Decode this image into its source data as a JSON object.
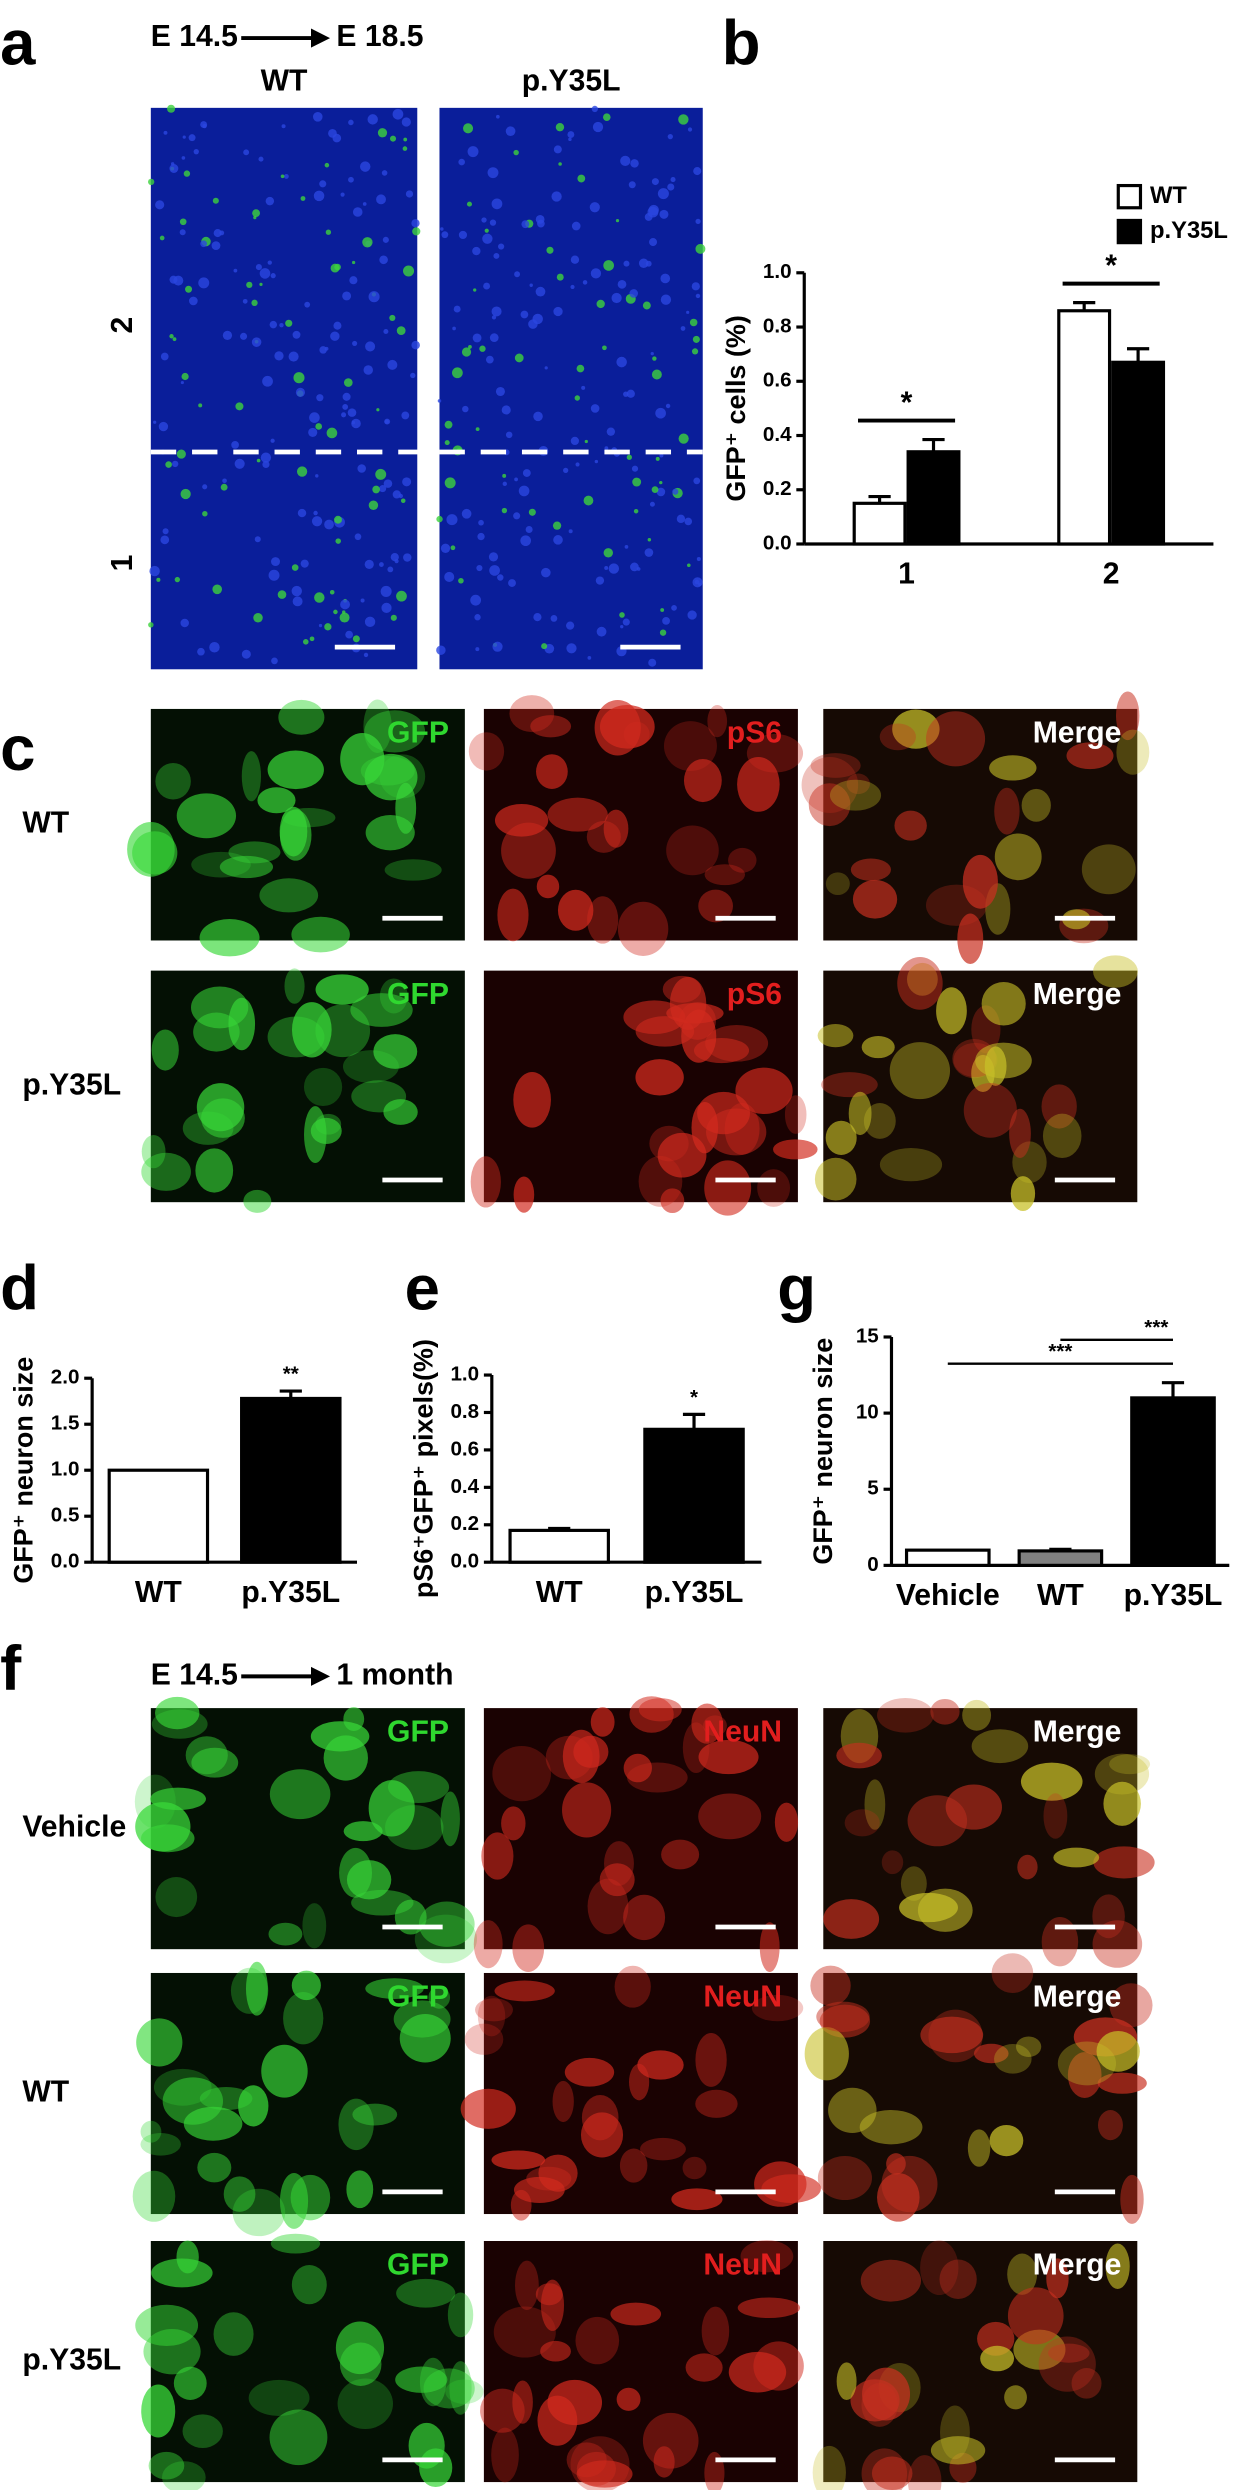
{
  "panel_labels": [
    "a",
    "b",
    "c",
    "d",
    "e",
    "g",
    "f"
  ],
  "panel_a": {
    "timeline": {
      "start": "E 14.5",
      "end": "E 18.5"
    },
    "columns": [
      "WT",
      "p.Y35L"
    ],
    "regions": [
      "2",
      "1"
    ]
  },
  "panel_c": {
    "rows": [
      "WT",
      "p.Y35L"
    ],
    "channels": [
      "GFP",
      "pS6",
      "Merge"
    ]
  },
  "panel_f": {
    "timeline": {
      "start": "E 14.5",
      "end": "1 month"
    },
    "rows": [
      "Vehicle",
      "WT",
      "p.Y35L"
    ],
    "channels": [
      "GFP",
      "NeuN",
      "Merge"
    ]
  },
  "chart_data": [
    {
      "type": "bar",
      "ylabel": "GFP⁺ cells (%)",
      "categories": [
        "1",
        "2"
      ],
      "series": [
        {
          "name": "WT",
          "color": "#ffffff",
          "values": [
            0.15,
            0.86
          ],
          "errors": [
            0.025,
            0.03
          ]
        },
        {
          "name": "p.Y35L",
          "color": "#000000",
          "values": [
            0.34,
            0.67
          ],
          "errors": [
            0.045,
            0.05
          ]
        }
      ],
      "ylim": [
        0,
        1
      ],
      "yticks": [
        {
          "value": 0,
          "label": "0.0"
        },
        0.2,
        0.4,
        0.6,
        0.8,
        {
          "value": 1,
          "label": "1.0"
        }
      ],
      "annotations": [
        "*",
        "*"
      ],
      "legend": "upper right"
    },
    {
      "type": "bar",
      "ylabel": "GFP⁺ neuron size",
      "categories": [
        "WT",
        "p.Y35L"
      ],
      "values": [
        1.0,
        1.78
      ],
      "errors": [
        null,
        0.08
      ],
      "colors": [
        "#ffffff",
        "#000000"
      ],
      "ylim": [
        0,
        2
      ],
      "yticks": [
        {
          "value": 0,
          "label": "0.0"
        },
        0.5,
        {
          "value": 1,
          "label": "1.0"
        },
        1.5,
        {
          "value": 2,
          "label": "2.0"
        }
      ],
      "annotations": [
        null,
        "**"
      ]
    },
    {
      "type": "bar",
      "ylabel": "pS6⁺GFP⁺ pixels(%)",
      "categories": [
        "WT",
        "p.Y35L"
      ],
      "values": [
        0.17,
        0.71
      ],
      "errors": [
        0.01,
        0.08
      ],
      "colors": [
        "#ffffff",
        "#000000"
      ],
      "ylim": [
        0,
        1
      ],
      "yticks": [
        {
          "value": 0,
          "label": "0.0"
        },
        0.2,
        0.4,
        0.6,
        0.8,
        {
          "value": 1,
          "label": "1.0"
        }
      ],
      "annotations": [
        null,
        "*"
      ]
    },
    {
      "type": "bar",
      "ylabel": "GFP⁺ neuron size",
      "categories": [
        "Vehicle",
        "WT",
        "p.Y35L"
      ],
      "values": [
        1.0,
        0.95,
        11.0
      ],
      "errors": [
        null,
        0.1,
        1.0
      ],
      "colors": [
        "#ffffff",
        "#808080",
        "#000000"
      ],
      "ylim": [
        0,
        15
      ],
      "yticks": [
        0,
        5,
        10,
        15
      ],
      "comparisons": [
        {
          "pair": [
            "Vehicle",
            "p.Y35L"
          ],
          "label": "***"
        },
        {
          "pair": [
            "WT",
            "p.Y35L"
          ],
          "label": "***"
        }
      ]
    }
  ]
}
